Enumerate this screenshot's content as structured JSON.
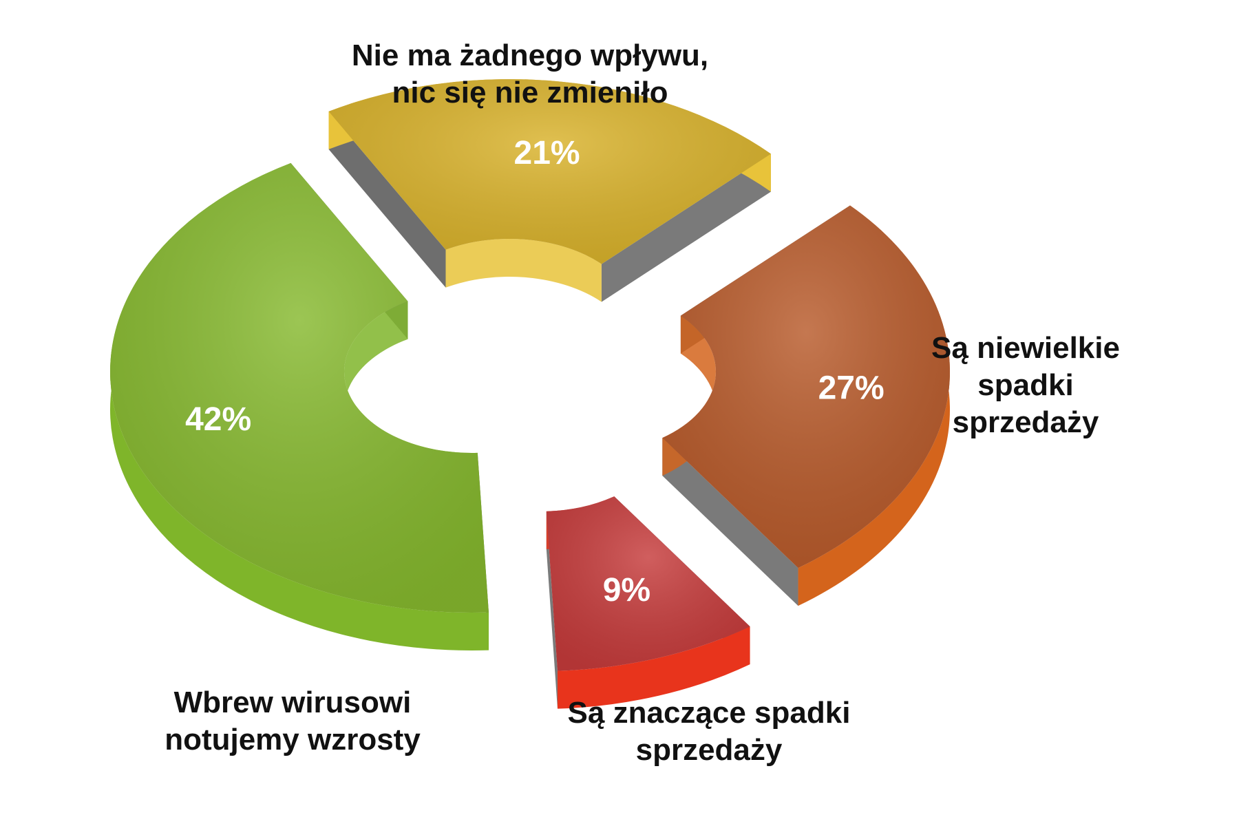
{
  "chart_data": {
    "type": "pie",
    "style": "3d-donut",
    "categories": [
      "Nie ma żadnego wpływu, nic się nie zmieniło",
      "Są niewielkie spadki sprzedaży",
      "Są znaczące spadki sprzedaży",
      "Wbrew wirusowi notujemy wzrosty"
    ],
    "values": [
      21,
      27,
      9,
      42
    ],
    "value_labels": [
      "21%",
      "27%",
      "9%",
      "42%"
    ],
    "label_lines": [
      [
        "Nie ma żadnego wpływu,",
        "nic się nie zmieniło"
      ],
      [
        "Są niewielkie",
        "spadki",
        "sprzedaży"
      ],
      [
        "Są znaczące spadki",
        "sprzedaży"
      ],
      [
        "Wbrew wirusowi",
        "notujemy wzrosty"
      ]
    ],
    "colors": [
      "#d9b22a",
      "#b85a2a",
      "#c63b3b",
      "#86b92e"
    ],
    "side_colors": [
      "#e8c33a",
      "#d4641c",
      "#e8341c",
      "#7fb52a"
    ],
    "legend": "none"
  }
}
